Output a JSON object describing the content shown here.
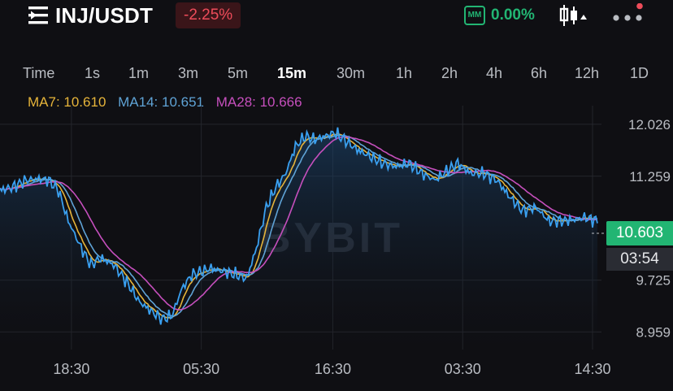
{
  "header": {
    "pair": "INJ/USDT",
    "change": "-2.25%",
    "mm_label": "MM",
    "mm_value": "0.00%"
  },
  "timeframes": [
    "Time",
    "1s",
    "1m",
    "3m",
    "5m",
    "15m",
    "30m",
    "1h",
    "2h",
    "4h",
    "6h",
    "12h",
    "1D"
  ],
  "active_timeframe": "15m",
  "ma_legend": {
    "ma7": "MA7: 10.610",
    "ma14": "MA14: 10.651",
    "ma28": "MA28: 10.666"
  },
  "chart_data": {
    "type": "line",
    "watermark": "BYBIT",
    "y_ticks": [
      "12.026",
      "11.259",
      "9.725",
      "8.959"
    ],
    "y_tick_values": [
      12.026,
      11.259,
      9.725,
      8.959
    ],
    "x_ticks": [
      "18:30",
      "05:30",
      "16:30",
      "03:30",
      "14:30"
    ],
    "current_price": "10.603",
    "countdown": "03:54",
    "ylim": [
      8.7,
      12.3
    ],
    "x": [
      0,
      1,
      2,
      3,
      4,
      5,
      6,
      7,
      8,
      9,
      10,
      11,
      12,
      13,
      14,
      15,
      16,
      17,
      18,
      19,
      20,
      21,
      22,
      23,
      24,
      25,
      26,
      27,
      28,
      29,
      30,
      31,
      32,
      33,
      34,
      35,
      36,
      37,
      38,
      39,
      40,
      41,
      42,
      43,
      44,
      45,
      46,
      47,
      48,
      49,
      50,
      51,
      52,
      53,
      54,
      55,
      56,
      57,
      58,
      59,
      60,
      61,
      62,
      63,
      64,
      65,
      66,
      67,
      68,
      69,
      70,
      71,
      72,
      73,
      74,
      75,
      76,
      77,
      78,
      79,
      80,
      81,
      82,
      83,
      84,
      85,
      86,
      87,
      88,
      89,
      90,
      91,
      92,
      93,
      94,
      95,
      96,
      97,
      98,
      99,
      100,
      101,
      102,
      103,
      104,
      105,
      106,
      107,
      108,
      109,
      110,
      111,
      112,
      113,
      114,
      115,
      116,
      117,
      118,
      119,
      120,
      121,
      122,
      123,
      124,
      125,
      126,
      127,
      128,
      129,
      130,
      131,
      132,
      133,
      134,
      135,
      136,
      137,
      138,
      139,
      140,
      141,
      142,
      143,
      144,
      145,
      146,
      147,
      148,
      149,
      150,
      151,
      152,
      153,
      154,
      155,
      156,
      157,
      158,
      159,
      160,
      161,
      162,
      163,
      164,
      165,
      166,
      167,
      168,
      169,
      170,
      171,
      172,
      173,
      174,
      175,
      176,
      177,
      178,
      179,
      180,
      181,
      182,
      183,
      184,
      185,
      186,
      187,
      188,
      189,
      190,
      191,
      192,
      193,
      194,
      195,
      196,
      197,
      198,
      199,
      200,
      201,
      202,
      203,
      204,
      205,
      206,
      207,
      208,
      209,
      210,
      211,
      212,
      213,
      214,
      215,
      216,
      217,
      218,
      219,
      220,
      221,
      222,
      223,
      224,
      225,
      226,
      227,
      228,
      229,
      230,
      231,
      232,
      233,
      234,
      235,
      236,
      237,
      238,
      239,
      240,
      241,
      242,
      243,
      244,
      245,
      246,
      247,
      248,
      249,
      250,
      251,
      252,
      253,
      254,
      255,
      256,
      257,
      258,
      259,
      260,
      261,
      262,
      263,
      264,
      265,
      266,
      267,
      268,
      269,
      270,
      271,
      272,
      273,
      274,
      275,
      276,
      277,
      278,
      279,
      280,
      281,
      282,
      283,
      284,
      285,
      286,
      287,
      288,
      289,
      290,
      291,
      292,
      293,
      294,
      295,
      296,
      297,
      298,
      299,
      300,
      301,
      302,
      303,
      304,
      305,
      306,
      307,
      308,
      309,
      310,
      311,
      312,
      313,
      314,
      315,
      316,
      317,
      318,
      319,
      320,
      321,
      322,
      323,
      324,
      325,
      326,
      327,
      328,
      329,
      330,
      331,
      332,
      333,
      334,
      335,
      336,
      337,
      338,
      339,
      340,
      341,
      342,
      343,
      344,
      345,
      346,
      347,
      348,
      349,
      350,
      351,
      352,
      353,
      354,
      355,
      356,
      357,
      358,
      359,
      360,
      361,
      362,
      363,
      364,
      365,
      366,
      367,
      368
    ],
    "x_tick_index": [
      44,
      124,
      205,
      285,
      365
    ],
    "values_anchor": [
      [
        0,
        11.05
      ],
      [
        8,
        11.1
      ],
      [
        16,
        11.2
      ],
      [
        24,
        11.22
      ],
      [
        30,
        11.2
      ],
      [
        36,
        11.05
      ],
      [
        42,
        10.6
      ],
      [
        50,
        10.2
      ],
      [
        56,
        9.95
      ],
      [
        62,
        10.05
      ],
      [
        70,
        9.95
      ],
      [
        78,
        9.7
      ],
      [
        86,
        9.4
      ],
      [
        94,
        9.25
      ],
      [
        100,
        9.15
      ],
      [
        106,
        9.2
      ],
      [
        112,
        9.6
      ],
      [
        118,
        9.8
      ],
      [
        124,
        9.85
      ],
      [
        130,
        9.9
      ],
      [
        138,
        9.85
      ],
      [
        146,
        9.8
      ],
      [
        152,
        9.75
      ],
      [
        158,
        10.2
      ],
      [
        164,
        10.8
      ],
      [
        170,
        11.1
      ],
      [
        176,
        11.3
      ],
      [
        182,
        11.7
      ],
      [
        188,
        11.85
      ],
      [
        194,
        11.8
      ],
      [
        200,
        11.85
      ],
      [
        206,
        11.9
      ],
      [
        212,
        11.8
      ],
      [
        220,
        11.65
      ],
      [
        228,
        11.55
      ],
      [
        236,
        11.45
      ],
      [
        244,
        11.4
      ],
      [
        252,
        11.45
      ],
      [
        260,
        11.3
      ],
      [
        268,
        11.2
      ],
      [
        276,
        11.35
      ],
      [
        282,
        11.45
      ],
      [
        290,
        11.3
      ],
      [
        298,
        11.3
      ],
      [
        306,
        11.2
      ],
      [
        314,
        10.95
      ],
      [
        322,
        10.75
      ],
      [
        330,
        10.8
      ],
      [
        338,
        10.6
      ],
      [
        346,
        10.6
      ],
      [
        354,
        10.62
      ],
      [
        360,
        10.65
      ],
      [
        368,
        10.6
      ]
    ],
    "series": [
      {
        "name": "MA7",
        "color": "#e6b43a"
      },
      {
        "name": "MA14",
        "color": "#5fa3d6"
      },
      {
        "name": "MA28",
        "color": "#c64fbd"
      }
    ]
  },
  "colors": {
    "up": "#22b573",
    "down": "#ee4c5a",
    "price_line": "#3aa0f0",
    "bg": "#0f0f13",
    "grid": "#24262c"
  }
}
